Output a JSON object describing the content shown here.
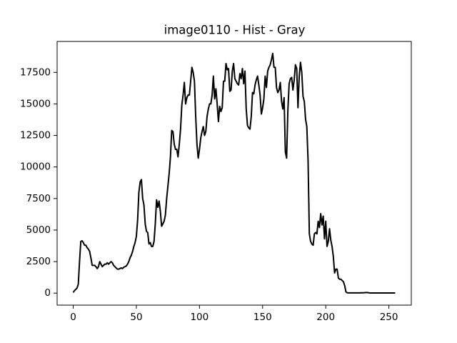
{
  "chart_data": {
    "type": "line",
    "title": "image0110 - Hist - Gray",
    "color": "#000000",
    "x": [
      0,
      1,
      2,
      3,
      4,
      5,
      6,
      7,
      8,
      9,
      10,
      11,
      12,
      13,
      14,
      15,
      16,
      17,
      18,
      19,
      20,
      21,
      22,
      23,
      24,
      25,
      26,
      27,
      28,
      29,
      30,
      31,
      32,
      33,
      34,
      35,
      36,
      37,
      38,
      39,
      40,
      41,
      42,
      43,
      44,
      45,
      46,
      47,
      48,
      49,
      50,
      51,
      52,
      53,
      54,
      55,
      56,
      57,
      58,
      59,
      60,
      61,
      62,
      63,
      64,
      65,
      66,
      67,
      68,
      69,
      70,
      71,
      72,
      73,
      74,
      75,
      76,
      77,
      78,
      79,
      80,
      81,
      82,
      83,
      84,
      85,
      86,
      87,
      88,
      89,
      90,
      91,
      92,
      93,
      94,
      95,
      96,
      97,
      98,
      99,
      100,
      101,
      102,
      103,
      104,
      105,
      106,
      107,
      108,
      109,
      110,
      111,
      112,
      113,
      114,
      115,
      116,
      117,
      118,
      119,
      120,
      121,
      122,
      123,
      124,
      125,
      126,
      127,
      128,
      129,
      130,
      131,
      132,
      133,
      134,
      135,
      136,
      137,
      138,
      139,
      140,
      141,
      142,
      143,
      144,
      145,
      146,
      147,
      148,
      149,
      150,
      151,
      152,
      153,
      154,
      155,
      156,
      157,
      158,
      159,
      160,
      161,
      162,
      163,
      164,
      165,
      166,
      167,
      168,
      169,
      170,
      171,
      172,
      173,
      174,
      175,
      176,
      177,
      178,
      179,
      180,
      181,
      182,
      183,
      184,
      185,
      186,
      187,
      188,
      189,
      190,
      191,
      192,
      193,
      194,
      195,
      196,
      197,
      198,
      199,
      200,
      201,
      202,
      203,
      204,
      205,
      206,
      207,
      208,
      209,
      210,
      211,
      212,
      213,
      214,
      215,
      216,
      217,
      218,
      219,
      220,
      221,
      222,
      223,
      224,
      225,
      226,
      227,
      228,
      229,
      230,
      231,
      232,
      233,
      234,
      235,
      236,
      237,
      238,
      239,
      240,
      241,
      242,
      243,
      244,
      245,
      246,
      247,
      248,
      249,
      250,
      251,
      252,
      253,
      254,
      255
    ],
    "values": [
      50,
      200,
      300,
      400,
      700,
      2500,
      4100,
      4150,
      4000,
      3800,
      3800,
      3600,
      3500,
      3300,
      2800,
      2200,
      2200,
      2200,
      2100,
      1950,
      2100,
      2500,
      2300,
      2100,
      2200,
      2300,
      2300,
      2400,
      2300,
      2400,
      2500,
      2400,
      2200,
      2100,
      2000,
      1900,
      1900,
      1950,
      2000,
      1950,
      2050,
      2100,
      2150,
      2300,
      2500,
      2800,
      3000,
      3300,
      3700,
      4000,
      4500,
      5800,
      8000,
      8800,
      9000,
      7500,
      7000,
      5500,
      4900,
      4800,
      3900,
      4000,
      3700,
      3700,
      4100,
      5500,
      7400,
      6800,
      7300,
      6500,
      5300,
      5500,
      5700,
      6200,
      7500,
      8500,
      9500,
      10800,
      12900,
      12800,
      11800,
      11400,
      11400,
      10800,
      11800,
      13000,
      14900,
      15700,
      16700,
      15000,
      15500,
      15700,
      15700,
      16800,
      17900,
      17500,
      16800,
      14000,
      11800,
      10700,
      11400,
      12300,
      12800,
      13200,
      12500,
      12800,
      14000,
      14600,
      15000,
      15000,
      15700,
      17200,
      15400,
      16200,
      15000,
      13600,
      14800,
      14400,
      14700,
      16800,
      16800,
      18200,
      17700,
      17800,
      16000,
      16100,
      17600,
      18200,
      17000,
      16800,
      16600,
      16500,
      17400,
      17000,
      17800,
      16600,
      17600,
      14600,
      13300,
      13100,
      13000,
      14000,
      15900,
      15800,
      16500,
      16900,
      17200,
      16500,
      15700,
      14200,
      14700,
      15400,
      17200,
      16300,
      17600,
      17900,
      18100,
      18500,
      19000,
      17900,
      17900,
      16300,
      15900,
      16100,
      16700,
      15200,
      14600,
      15500,
      11200,
      10700,
      14500,
      16600,
      17000,
      17100,
      16100,
      16900,
      18100,
      17800,
      14700,
      17200,
      18300,
      17500,
      15600,
      15200,
      13800,
      13200,
      10500,
      4700,
      4100,
      3900,
      3800,
      4700,
      4800,
      4700,
      5700,
      5200,
      6300,
      5400,
      6100,
      4300,
      5700,
      3700,
      4100,
      5100,
      4200,
      3700,
      2900,
      1600,
      1900,
      1900,
      1200,
      1100,
      1100,
      1000,
      900,
      600,
      100,
      30,
      20,
      20,
      20,
      20,
      20,
      20,
      20,
      20,
      20,
      20,
      30,
      30,
      30,
      40,
      50,
      50,
      30,
      10,
      10,
      10,
      10,
      10,
      10,
      10,
      10,
      10,
      10,
      10,
      10,
      10,
      10,
      10,
      10,
      10,
      10,
      10,
      10,
      10
    ],
    "xlim": [
      -12.75,
      267.75
    ],
    "xticks": [
      0,
      50,
      100,
      150,
      200,
      250
    ],
    "ylim": [
      -950,
      19950
    ],
    "yticks": [
      0,
      2500,
      5000,
      7500,
      10000,
      12500,
      15000,
      17500
    ]
  }
}
